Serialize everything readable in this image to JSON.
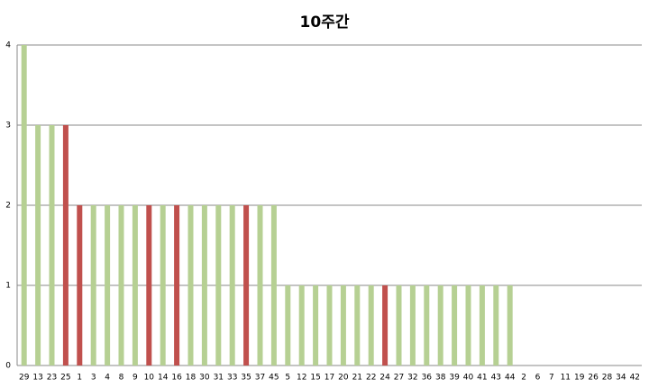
{
  "chart_data": {
    "type": "bar",
    "title": "10주간",
    "categories": [
      "29",
      "13",
      "23",
      "25",
      "1",
      "3",
      "4",
      "8",
      "9",
      "10",
      "14",
      "16",
      "18",
      "30",
      "31",
      "33",
      "35",
      "37",
      "45",
      "5",
      "12",
      "15",
      "17",
      "20",
      "21",
      "22",
      "24",
      "27",
      "32",
      "36",
      "38",
      "39",
      "40",
      "41",
      "43",
      "44",
      "2",
      "6",
      "7",
      "11",
      "19",
      "26",
      "28",
      "34",
      "42"
    ],
    "values": [
      4,
      3,
      3,
      3,
      2,
      2,
      2,
      2,
      2,
      2,
      2,
      2,
      2,
      2,
      2,
      2,
      2,
      2,
      2,
      1,
      1,
      1,
      1,
      1,
      1,
      1,
      1,
      1,
      1,
      1,
      1,
      1,
      1,
      1,
      1,
      1,
      0,
      0,
      0,
      0,
      0,
      0,
      0,
      0,
      0
    ],
    "colors": [
      "#b6d093",
      "#b6d093",
      "#b6d093",
      "#c0504d",
      "#c0504d",
      "#b6d093",
      "#b6d093",
      "#b6d093",
      "#b6d093",
      "#c0504d",
      "#b6d093",
      "#c0504d",
      "#b6d093",
      "#b6d093",
      "#b6d093",
      "#b6d093",
      "#c0504d",
      "#b6d093",
      "#b6d093",
      "#b6d093",
      "#b6d093",
      "#b6d093",
      "#b6d093",
      "#b6d093",
      "#b6d093",
      "#b6d093",
      "#c0504d",
      "#b6d093",
      "#b6d093",
      "#b6d093",
      "#b6d093",
      "#b6d093",
      "#b6d093",
      "#b6d093",
      "#b6d093",
      "#b6d093",
      "#b6d093",
      "#b6d093",
      "#b6d093",
      "#b6d093",
      "#b6d093",
      "#b6d093",
      "#b6d093",
      "#b6d093",
      "#b6d093"
    ],
    "ylim": [
      0,
      4
    ],
    "yticks": [
      0,
      1,
      2,
      3,
      4
    ],
    "grid": true
  }
}
